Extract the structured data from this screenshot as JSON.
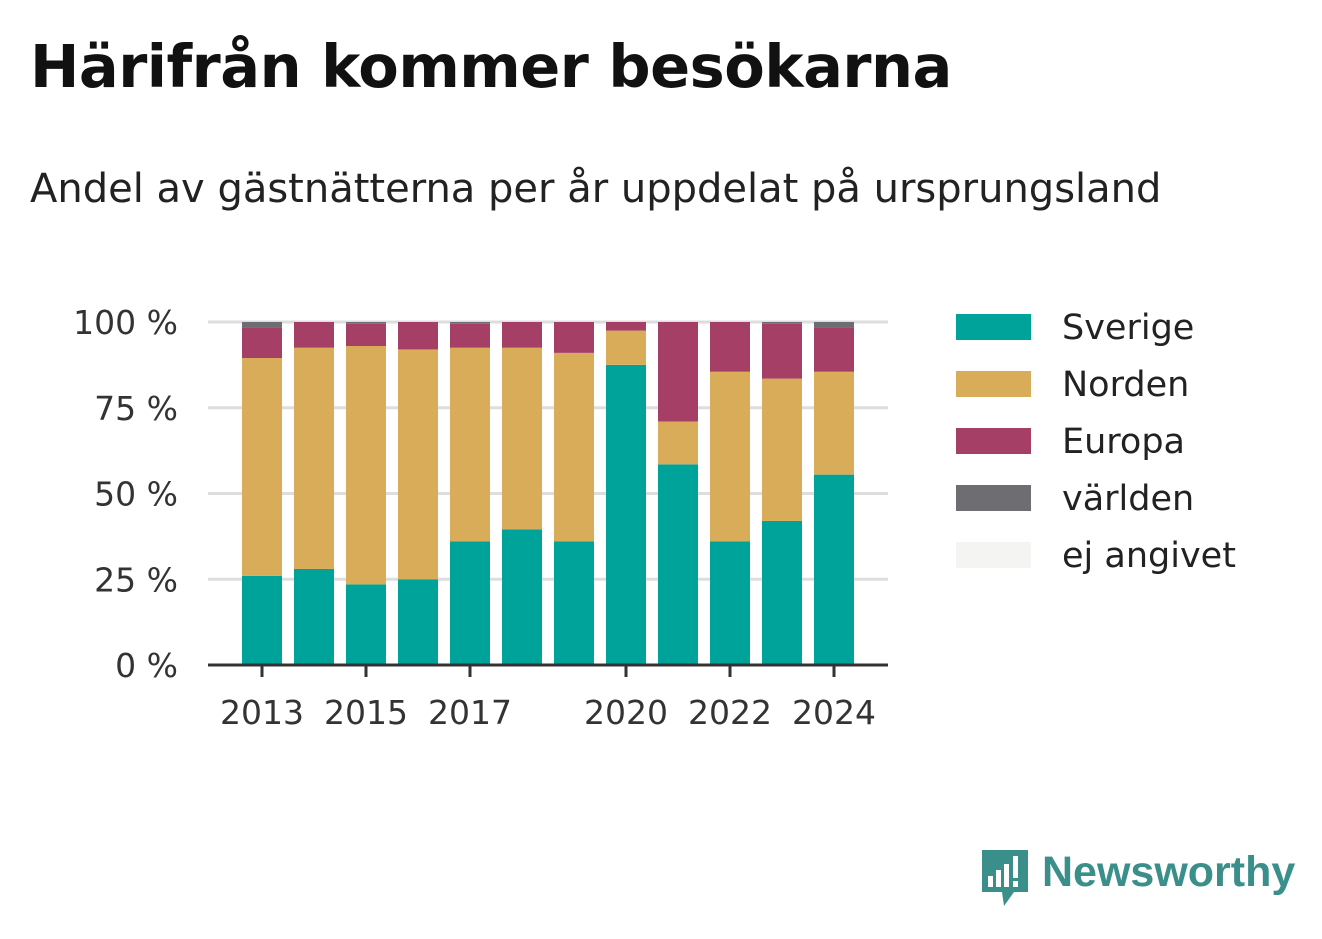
{
  "chart_data": {
    "type": "bar",
    "stacked": true,
    "title": "Härifrån kommer besökarna",
    "subtitle": "Andel av gästnätterna per år uppdelat på ursprungsland",
    "categories": [
      "2013",
      "2014",
      "2015",
      "2016",
      "2017",
      "2018",
      "2019",
      "2020",
      "2021",
      "2022",
      "2023",
      "2024"
    ],
    "x_tick_labels": [
      "2013",
      "2015",
      "2017",
      "2020",
      "2022",
      "2024"
    ],
    "y_ticks": [
      0,
      25,
      50,
      75,
      100
    ],
    "y_tick_labels": [
      "0 %",
      "25 %",
      "50 %",
      "75 %",
      "100 %"
    ],
    "ylim": [
      0,
      100
    ],
    "grid": true,
    "legend_position": "right",
    "series": [
      {
        "name": "Sverige",
        "color": "#00a39a",
        "values": [
          26,
          28,
          23.5,
          25,
          36,
          39.5,
          36,
          87.5,
          58.5,
          36,
          42,
          55.5
        ]
      },
      {
        "name": "Norden",
        "color": "#d9ac5a",
        "values": [
          63.5,
          64.5,
          69.5,
          67,
          56.5,
          53,
          55,
          10,
          12.5,
          49.5,
          41.5,
          30
        ]
      },
      {
        "name": "Europa",
        "color": "#a63f66",
        "values": [
          9,
          7.5,
          6.5,
          8,
          7,
          7.5,
          9,
          2.5,
          29,
          14.5,
          16,
          13
        ]
      },
      {
        "name": "världen",
        "color": "#6e6d72",
        "values": [
          1.5,
          0,
          0.5,
          0,
          0.5,
          0,
          0,
          0,
          0,
          0,
          0.5,
          1.5
        ]
      },
      {
        "name": "ej angivet",
        "color": "#f4f4f2",
        "values": [
          0,
          0,
          0,
          0,
          0,
          0,
          0,
          0,
          0,
          0,
          0,
          0
        ]
      }
    ]
  },
  "branding": {
    "name": "Newsworthy",
    "icon": "bar-chart-speech-bubble-icon",
    "color": "#3b8f8a"
  }
}
